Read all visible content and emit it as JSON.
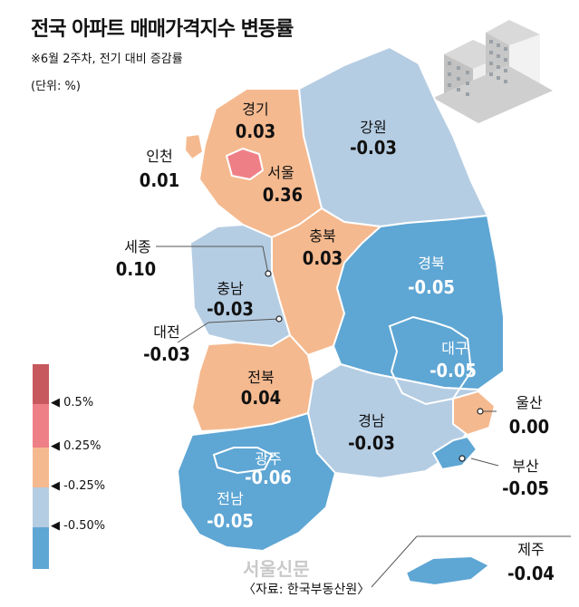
{
  "title": "전국 아파트 매매가격지수 변동률",
  "subtitle": "※6월 2주차, 전기 대비 증감률",
  "unit": "(단위: %)",
  "colors": {
    "very_high": "#c6585e",
    "high": "#ef7f86",
    "up": "#f5b98f",
    "flat_down": "#b5cde3",
    "down": "#5ea6d4"
  },
  "legend": {
    "ticks": [
      "0.5%",
      "0.25%",
      "-0.25%",
      "-0.50%"
    ]
  },
  "regions": {
    "gyeonggi": {
      "name": "경기",
      "value": "0.03"
    },
    "gangwon": {
      "name": "강원",
      "value": "-0.03"
    },
    "incheon": {
      "name": "인천",
      "value": "0.01"
    },
    "seoul": {
      "name": "서울",
      "value": "0.36"
    },
    "sejong": {
      "name": "세종",
      "value": "0.10"
    },
    "chungbuk": {
      "name": "충북",
      "value": "0.03"
    },
    "chungnam": {
      "name": "충남",
      "value": "-0.03"
    },
    "gyeongbuk": {
      "name": "경북",
      "value": "-0.05"
    },
    "daejeon": {
      "name": "대전",
      "value": "-0.03"
    },
    "daegu": {
      "name": "대구",
      "value": "-0.05"
    },
    "jeonbuk": {
      "name": "전북",
      "value": "0.04"
    },
    "ulsan": {
      "name": "울산",
      "value": "0.00"
    },
    "gyeongnam": {
      "name": "경남",
      "value": "-0.03"
    },
    "gwangju": {
      "name": "광주",
      "value": "-0.06"
    },
    "busan": {
      "name": "부산",
      "value": "-0.05"
    },
    "jeonnam": {
      "name": "전남",
      "value": "-0.05"
    },
    "jeju": {
      "name": "제주",
      "value": "-0.04"
    }
  },
  "source": "〈자료: 한국부동산원〉",
  "watermark": "서울신문"
}
